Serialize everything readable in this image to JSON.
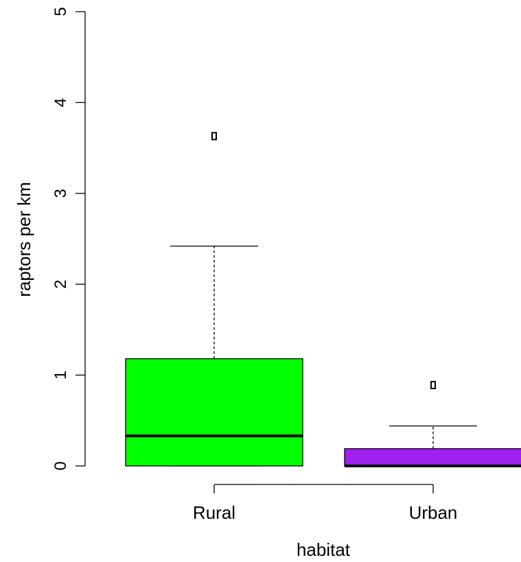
{
  "chart_data": {
    "type": "boxplot",
    "title": "",
    "xlabel": "habitat",
    "ylabel": "raptors per km",
    "ylim": [
      0,
      5
    ],
    "yticks": [
      "0",
      "1",
      "2",
      "3",
      "4",
      "5"
    ],
    "grid": false,
    "legend": "none",
    "categories": [
      "Rural",
      "Urban"
    ],
    "boxes": [
      {
        "category": "Rural",
        "color": "#00ff00",
        "whisker_low": 0.0,
        "q1": 0.0,
        "median": 0.33,
        "q3": 1.18,
        "whisker_high": 2.42,
        "outliers": [
          3.63
        ]
      },
      {
        "category": "Urban",
        "color": "#a020f0",
        "whisker_low": 0.0,
        "q1": 0.0,
        "median": 0.0,
        "q3": 0.19,
        "whisker_high": 0.44,
        "outliers": [
          0.89
        ]
      }
    ]
  }
}
